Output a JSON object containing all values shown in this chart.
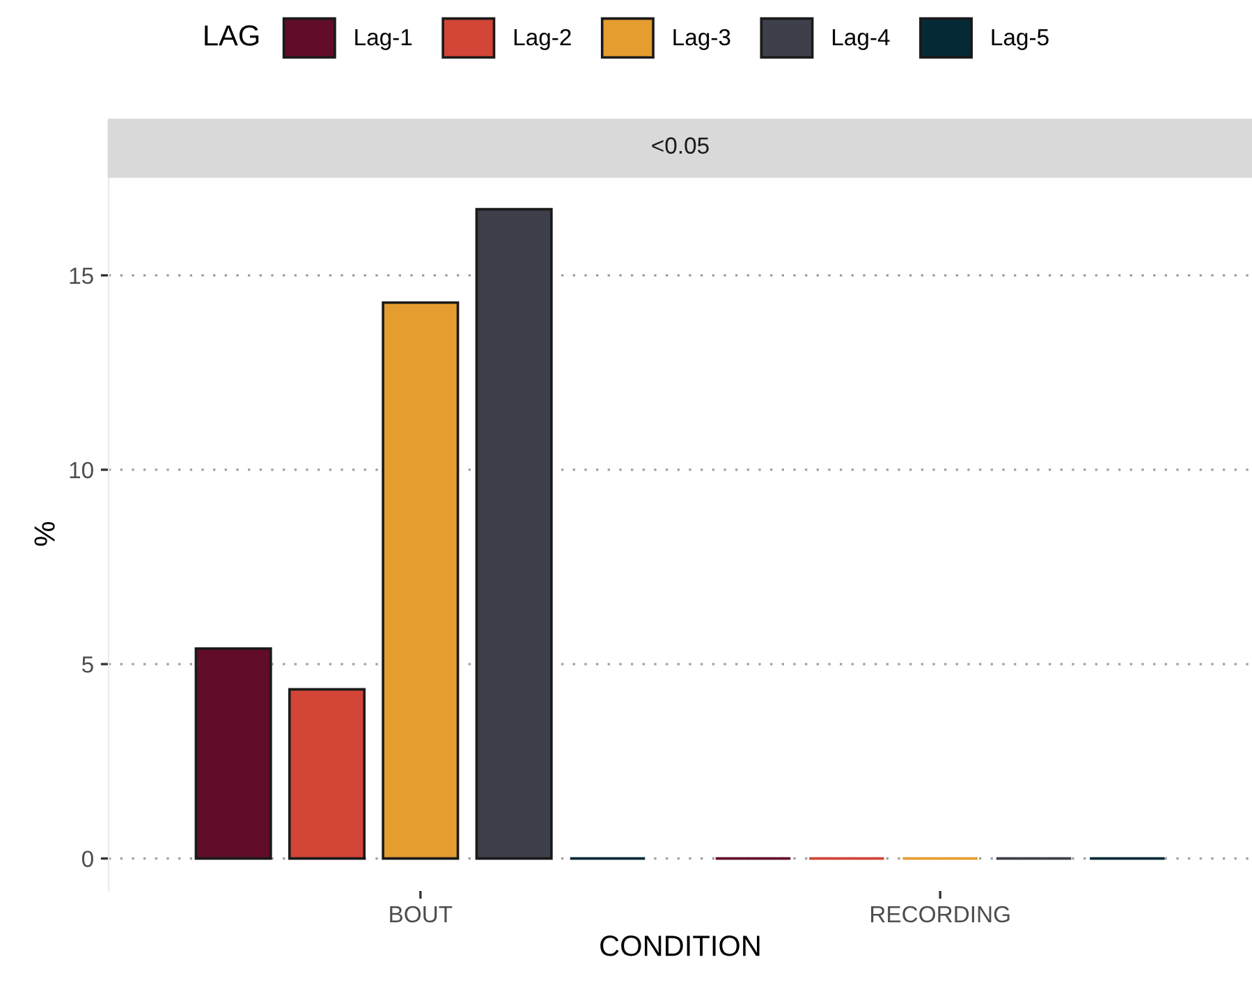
{
  "chart_data": {
    "type": "bar",
    "subtitle": "<0.05",
    "xlabel": "CONDITION",
    "ylabel": "%",
    "legend_title": "LAG",
    "categories": [
      "BOUT",
      "RECORDING"
    ],
    "series": [
      {
        "name": "Lag-1",
        "color": "#610c29",
        "values": [
          5.4,
          0
        ]
      },
      {
        "name": "Lag-2",
        "color": "#d24537",
        "values": [
          4.35,
          0
        ]
      },
      {
        "name": "Lag-3",
        "color": "#e59d30",
        "values": [
          14.3,
          0
        ]
      },
      {
        "name": "Lag-4",
        "color": "#3d404a",
        "values": [
          16.7,
          0
        ]
      },
      {
        "name": "Lag-5",
        "color": "#052a36",
        "values": [
          0,
          0
        ]
      }
    ],
    "ylim": [
      -0.835,
      17.535
    ],
    "yticks": [
      0,
      5,
      10,
      15
    ],
    "grid": "y",
    "legend": "top"
  }
}
